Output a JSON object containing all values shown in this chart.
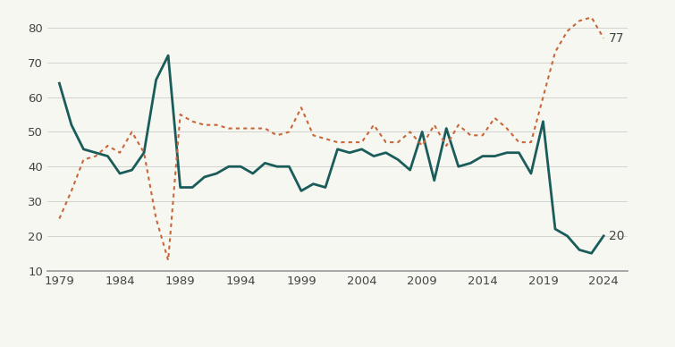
{
  "favorable_years": [
    1979,
    1980,
    1981,
    1982,
    1983,
    1984,
    1985,
    1986,
    1987,
    1988,
    1989,
    1990,
    1991,
    1992,
    1993,
    1994,
    1995,
    1996,
    1997,
    1998,
    1999,
    2000,
    2001,
    2002,
    2003,
    2004,
    2005,
    2006,
    2007,
    2008,
    2009,
    2010,
    2011,
    2012,
    2013,
    2014,
    2015,
    2016,
    2017,
    2018,
    2019,
    2020,
    2021,
    2022,
    2023,
    2024
  ],
  "favorable_values": [
    64,
    52,
    45,
    44,
    43,
    38,
    39,
    44,
    65,
    72,
    34,
    34,
    37,
    38,
    40,
    40,
    38,
    41,
    40,
    40,
    33,
    35,
    34,
    45,
    44,
    45,
    43,
    44,
    42,
    39,
    50,
    36,
    51,
    40,
    41,
    43,
    43,
    44,
    44,
    38,
    53,
    22,
    20,
    16,
    15,
    20
  ],
  "unfavorable_years": [
    1979,
    1980,
    1981,
    1982,
    1983,
    1984,
    1985,
    1986,
    1987,
    1988,
    1989,
    1990,
    1991,
    1992,
    1993,
    1994,
    1995,
    1996,
    1997,
    1998,
    1999,
    2000,
    2001,
    2002,
    2003,
    2004,
    2005,
    2006,
    2007,
    2008,
    2009,
    2010,
    2011,
    2012,
    2013,
    2014,
    2015,
    2016,
    2017,
    2018,
    2019,
    2020,
    2021,
    2022,
    2023,
    2024
  ],
  "unfavorable_values": [
    25,
    33,
    42,
    43,
    46,
    44,
    50,
    44,
    25,
    13,
    55,
    53,
    52,
    52,
    51,
    51,
    51,
    51,
    49,
    50,
    57,
    49,
    48,
    47,
    47,
    47,
    52,
    47,
    47,
    50,
    46,
    52,
    46,
    52,
    49,
    49,
    54,
    51,
    47,
    47,
    60,
    73,
    79,
    82,
    83,
    77
  ],
  "favorable_color": "#1a5c5a",
  "unfavorable_color": "#c8673a",
  "background_color": "#f7f7f2",
  "ylim": [
    10,
    85
  ],
  "yticks": [
    10,
    20,
    30,
    40,
    50,
    60,
    70,
    80
  ],
  "xticks": [
    1979,
    1984,
    1989,
    1994,
    1999,
    2004,
    2009,
    2014,
    2019,
    2024
  ],
  "end_label_favorable": "20",
  "end_label_unfavorable": "77",
  "xlim_left": 1978,
  "xlim_right": 2026
}
